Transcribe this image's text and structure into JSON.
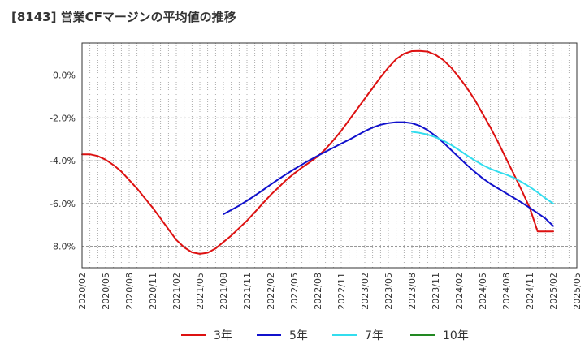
{
  "title": "[8143]  営業CFマージンの平均値の推移",
  "chart_data": {
    "type": "line",
    "title": "[8143]  営業CFマージンの平均値の推移",
    "xlabel": "",
    "ylabel": "",
    "ylim": [
      -9.0,
      1.5
    ],
    "yticks": [
      0,
      -2,
      -4,
      -6,
      -8
    ],
    "ytick_labels": [
      "0.0%",
      "-2.0%",
      "-4.0%",
      "-6.0%",
      "-8.0%"
    ],
    "x_range": [
      "2020/02",
      "2025/05"
    ],
    "xtick_labels": [
      "2020/02",
      "2020/05",
      "2020/08",
      "2020/11",
      "2021/02",
      "2021/05",
      "2021/08",
      "2021/11",
      "2022/02",
      "2022/05",
      "2022/08",
      "2022/11",
      "2023/02",
      "2023/05",
      "2023/08",
      "2023/11",
      "2024/02",
      "2024/05",
      "2024/08",
      "2024/11",
      "2025/02",
      "2025/05"
    ],
    "grid": true,
    "legend_position": "bottom",
    "series": [
      {
        "name": "3年",
        "color": "#dd1111",
        "x": [
          "2020/02",
          "2020/03",
          "2020/04",
          "2020/05",
          "2020/06",
          "2020/07",
          "2020/08",
          "2020/09",
          "2020/10",
          "2020/11",
          "2020/12",
          "2021/01",
          "2021/02",
          "2021/03",
          "2021/04",
          "2021/05",
          "2021/06",
          "2021/07",
          "2021/08",
          "2021/09",
          "2021/10",
          "2021/11",
          "2021/12",
          "2022/01",
          "2022/02",
          "2022/03",
          "2022/04",
          "2022/05",
          "2022/06",
          "2022/07",
          "2022/08",
          "2022/09",
          "2022/10",
          "2022/11",
          "2022/12",
          "2023/01",
          "2023/02",
          "2023/03",
          "2023/04",
          "2023/05",
          "2023/06",
          "2023/07",
          "2023/08",
          "2023/09",
          "2023/10",
          "2023/11",
          "2023/12",
          "2024/01",
          "2024/02",
          "2024/03",
          "2024/04",
          "2024/05",
          "2024/06",
          "2024/07",
          "2024/08",
          "2024/09",
          "2024/10",
          "2024/11",
          "2024/12",
          "2025/01",
          "2025/02"
        ],
        "values": [
          -3.7,
          -3.7,
          -3.78,
          -3.95,
          -4.2,
          -4.5,
          -4.9,
          -5.3,
          -5.75,
          -6.2,
          -6.7,
          -7.2,
          -7.7,
          -8.05,
          -8.28,
          -8.35,
          -8.3,
          -8.1,
          -7.8,
          -7.5,
          -7.15,
          -6.8,
          -6.4,
          -6.0,
          -5.6,
          -5.25,
          -4.9,
          -4.6,
          -4.32,
          -4.07,
          -3.8,
          -3.45,
          -3.05,
          -2.6,
          -2.1,
          -1.6,
          -1.1,
          -0.6,
          -0.1,
          0.35,
          0.75,
          1.0,
          1.12,
          1.13,
          1.1,
          0.95,
          0.7,
          0.35,
          -0.1,
          -0.6,
          -1.15,
          -1.8,
          -2.45,
          -3.15,
          -3.9,
          -4.65,
          -5.4,
          -6.2,
          -7.3,
          -7.3,
          -7.3
        ],
        "note": ""
      },
      {
        "name": "5年",
        "color": "#1111cc",
        "x": [
          "2021/08",
          "2021/09",
          "2021/10",
          "2021/11",
          "2021/12",
          "2022/01",
          "2022/02",
          "2022/03",
          "2022/04",
          "2022/05",
          "2022/06",
          "2022/07",
          "2022/08",
          "2022/09",
          "2022/10",
          "2022/11",
          "2022/12",
          "2023/01",
          "2023/02",
          "2023/03",
          "2023/04",
          "2023/05",
          "2023/06",
          "2023/07",
          "2023/08",
          "2023/09",
          "2023/10",
          "2023/11",
          "2023/12",
          "2024/01",
          "2024/02",
          "2024/03",
          "2024/04",
          "2024/05",
          "2024/06",
          "2024/07",
          "2024/08",
          "2024/09",
          "2024/10",
          "2024/11",
          "2024/12",
          "2025/01",
          "2025/02"
        ],
        "values": [
          -6.5,
          -6.3,
          -6.1,
          -5.87,
          -5.63,
          -5.38,
          -5.12,
          -4.87,
          -4.63,
          -4.4,
          -4.18,
          -3.97,
          -3.77,
          -3.58,
          -3.39,
          -3.2,
          -3.02,
          -2.82,
          -2.62,
          -2.45,
          -2.32,
          -2.24,
          -2.2,
          -2.2,
          -2.25,
          -2.37,
          -2.57,
          -2.84,
          -3.15,
          -3.5,
          -3.85,
          -4.2,
          -4.52,
          -4.82,
          -5.08,
          -5.3,
          -5.52,
          -5.74,
          -5.96,
          -6.2,
          -6.45,
          -6.7,
          -7.05
        ]
      },
      {
        "name": "7年",
        "color": "#33ddee",
        "x": [
          "2023/08",
          "2023/09",
          "2023/10",
          "2023/11",
          "2023/12",
          "2024/01",
          "2024/02",
          "2024/03",
          "2024/04",
          "2024/05",
          "2024/06",
          "2024/07",
          "2024/08",
          "2024/09",
          "2024/10",
          "2024/11",
          "2024/12",
          "2025/01",
          "2025/02"
        ],
        "values": [
          -2.65,
          -2.7,
          -2.78,
          -2.9,
          -3.06,
          -3.26,
          -3.5,
          -3.75,
          -3.98,
          -4.2,
          -4.38,
          -4.52,
          -4.65,
          -4.8,
          -5.0,
          -5.22,
          -5.48,
          -5.75,
          -6.0
        ]
      },
      {
        "name": "10年",
        "color": "#228822",
        "x": [],
        "values": []
      }
    ]
  }
}
